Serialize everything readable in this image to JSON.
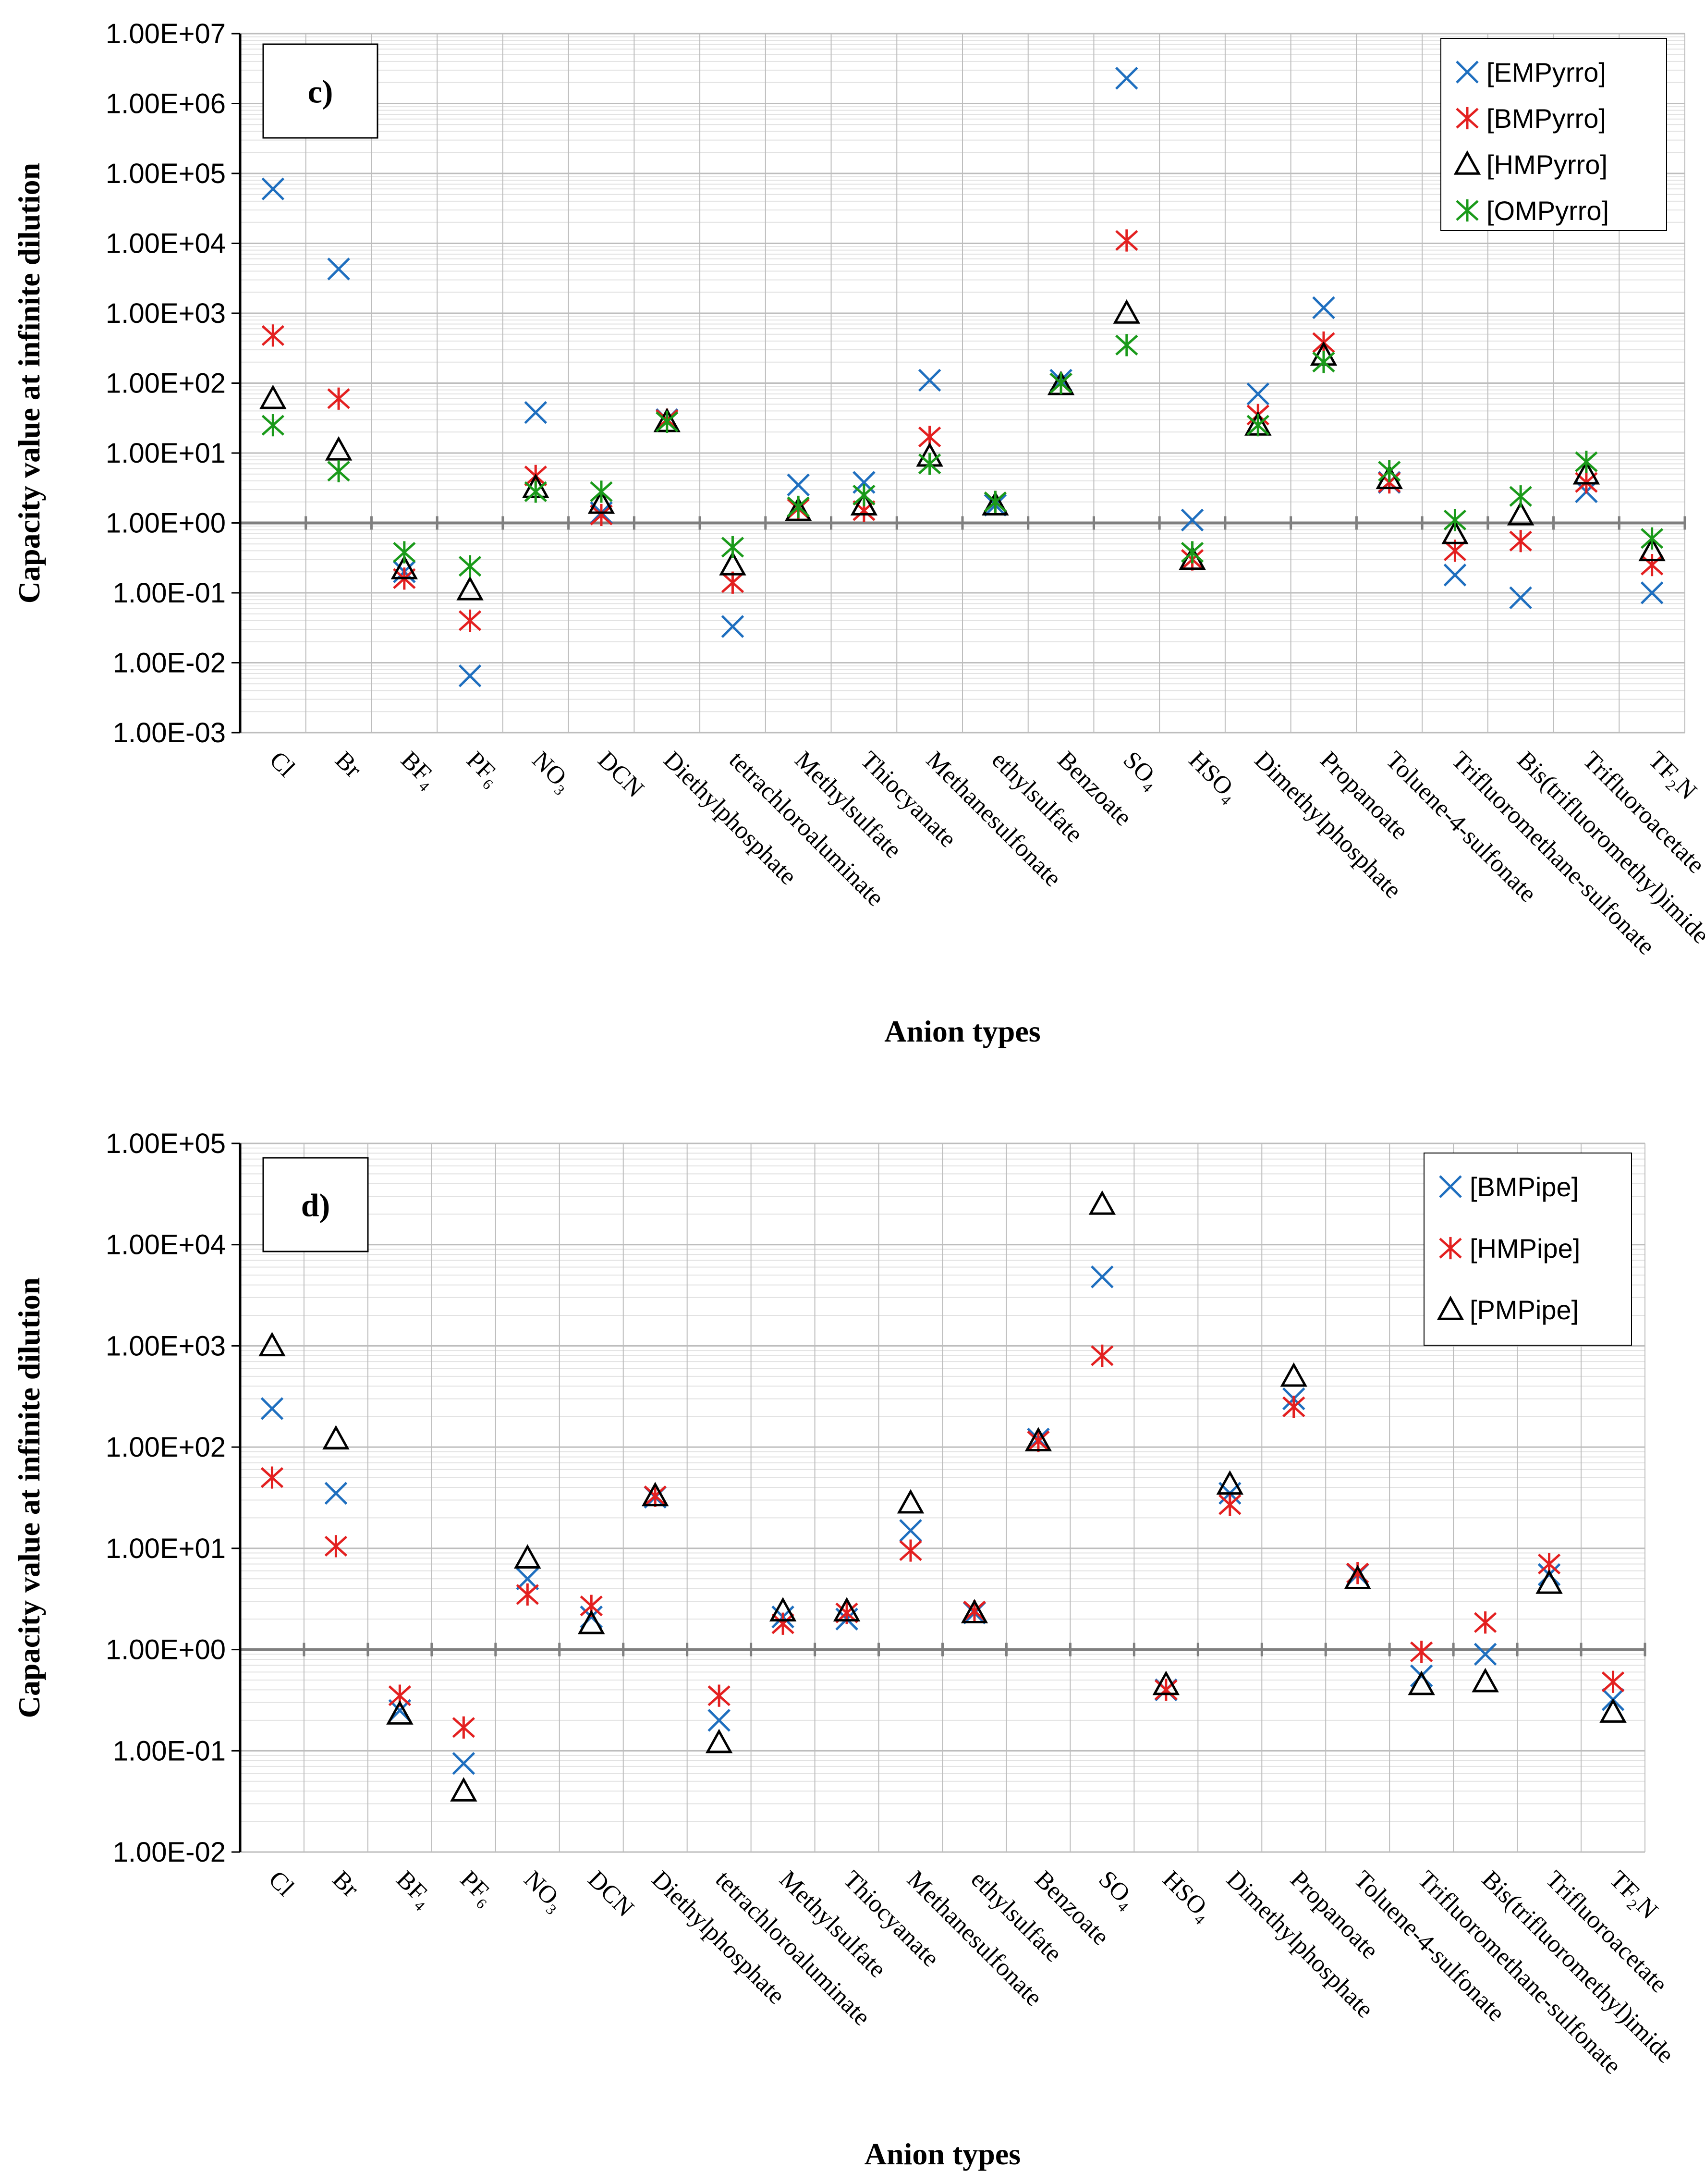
{
  "colors": {
    "blue": "#1f6fbf",
    "red": "#e32020",
    "black": "#000000",
    "green": "#1a9a1a",
    "grid_major": "#bdbdbd",
    "grid_minor": "#e2e2e2",
    "reference": "#7f7f7f"
  },
  "chart_data": [
    {
      "type": "scatter",
      "panel_label": "c)",
      "ylabel": "Capacity value at infinite dilution",
      "xlabel": "Anion types",
      "yscale": "log",
      "ylim": [
        0.001,
        10000000
      ],
      "y_tick_labels": [
        "1.00E+07",
        "1.00E+06",
        "1.00E+05",
        "1.00E+04",
        "1.00E+03",
        "1.00E+02",
        "1.00E+01",
        "1.00E+00",
        "1.00E-01",
        "1.00E-02",
        "1.00E-03"
      ],
      "reference_line": 1,
      "legend_position": "top-right",
      "categories": [
        "Cl",
        "Br",
        "BF₄",
        "PF₆",
        "NO₃",
        "DCN",
        "Diethylphosphate",
        "tetrachloroaluminate",
        "Methylsulfate",
        "Thiocyanate",
        "Methanesulfonate",
        "ethylsulfate",
        "Benzoate",
        "SO₄",
        "HSO₄",
        "Dimethylphosphate",
        "Propanoate",
        "Toluene-4-sulfonate",
        "Trifluoromethane-sulfonate",
        "Bis(trifluoromethyl)imide",
        "Trifluoroacetate",
        "TF₂N"
      ],
      "series": [
        {
          "name": "[EMPyrro]",
          "marker": "x",
          "color": "blue",
          "values": [
            60000,
            4300,
            0.2,
            0.0065,
            38,
            1.4,
            30,
            0.033,
            3.5,
            3.8,
            110,
            1.8,
            110,
            2300000,
            1.1,
            70,
            1200,
            3.8,
            0.18,
            0.085,
            2.8,
            0.1
          ]
        },
        {
          "name": "[BMPyrro]",
          "marker": "star",
          "color": "red",
          "values": [
            480,
            60,
            0.16,
            0.04,
            4.7,
            1.3,
            30,
            0.14,
            1.6,
            1.5,
            17,
            2,
            100,
            11000,
            0.3,
            35,
            380,
            3.8,
            0.4,
            0.55,
            3.8,
            0.25
          ]
        },
        {
          "name": "[HMPyrro]",
          "marker": "triangle",
          "color": "black",
          "values": [
            60,
            11,
            0.22,
            0.11,
            3.2,
            1.9,
            28,
            0.25,
            1.5,
            1.8,
            9,
            1.8,
            95,
            1000,
            0.3,
            25,
            250,
            4.3,
            0.7,
            1.3,
            5,
            0.4
          ]
        },
        {
          "name": "[OMPyrro]",
          "marker": "star",
          "color": "green",
          "values": [
            25,
            5.5,
            0.38,
            0.24,
            2.8,
            2.8,
            28,
            0.45,
            1.7,
            2.5,
            7,
            2,
            100,
            350,
            0.38,
            25,
            200,
            5.5,
            1.1,
            2.4,
            7.5,
            0.6
          ]
        }
      ]
    },
    {
      "type": "scatter",
      "panel_label": "d)",
      "ylabel": "Capacity value at infinite dilution",
      "xlabel": "Anion types",
      "yscale": "log",
      "ylim": [
        0.01,
        100000
      ],
      "y_tick_labels": [
        "1.00E+05",
        "1.00E+04",
        "1.00E+03",
        "1.00E+02",
        "1.00E+01",
        "1.00E+00",
        "1.00E-01",
        "1.00E-02"
      ],
      "reference_line": 1,
      "legend_position": "top-right",
      "categories": [
        "Cl",
        "Br",
        "BF₄",
        "PF₆",
        "NO₃",
        "DCN",
        "Diethylphosphate",
        "tetrachloroaluminate",
        "Methylsulfate",
        "Thiocyanate",
        "Methanesulfonate",
        "ethylsulfate",
        "Benzoate",
        "SO₄",
        "HSO₄",
        "Dimethylphosphate",
        "Propanoate",
        "Toluene-4-sulfonate",
        "Trifluoromethane-sulfonate",
        "Bis(trifluoromethyl)imide",
        "Trifluoroacetate",
        "TF₂N"
      ],
      "series": [
        {
          "name": "[BMPipe]",
          "marker": "x",
          "color": "blue",
          "values": [
            240,
            35,
            0.25,
            0.075,
            5,
            2.1,
            32,
            0.2,
            2.1,
            2,
            15,
            2.3,
            120,
            4800,
            0.4,
            35,
            300,
            5.5,
            0.55,
            0.9,
            5.5,
            0.32
          ]
        },
        {
          "name": "[HMPipe]",
          "marker": "star",
          "color": "red",
          "values": [
            50,
            10.5,
            0.35,
            0.17,
            3.5,
            2.7,
            33,
            0.35,
            1.8,
            2.3,
            9.5,
            2.4,
            115,
            800,
            0.4,
            27,
            250,
            5.7,
            0.95,
            1.85,
            7,
            0.48
          ]
        },
        {
          "name": "[PMPipe]",
          "marker": "triangle",
          "color": "black",
          "values": [
            1000,
            120,
            0.23,
            0.04,
            8,
            1.8,
            33,
            0.12,
            2.4,
            2.4,
            28,
            2.3,
            115,
            25000,
            0.45,
            43,
            500,
            5,
            0.45,
            0.48,
            4.5,
            0.24
          ]
        }
      ]
    }
  ]
}
